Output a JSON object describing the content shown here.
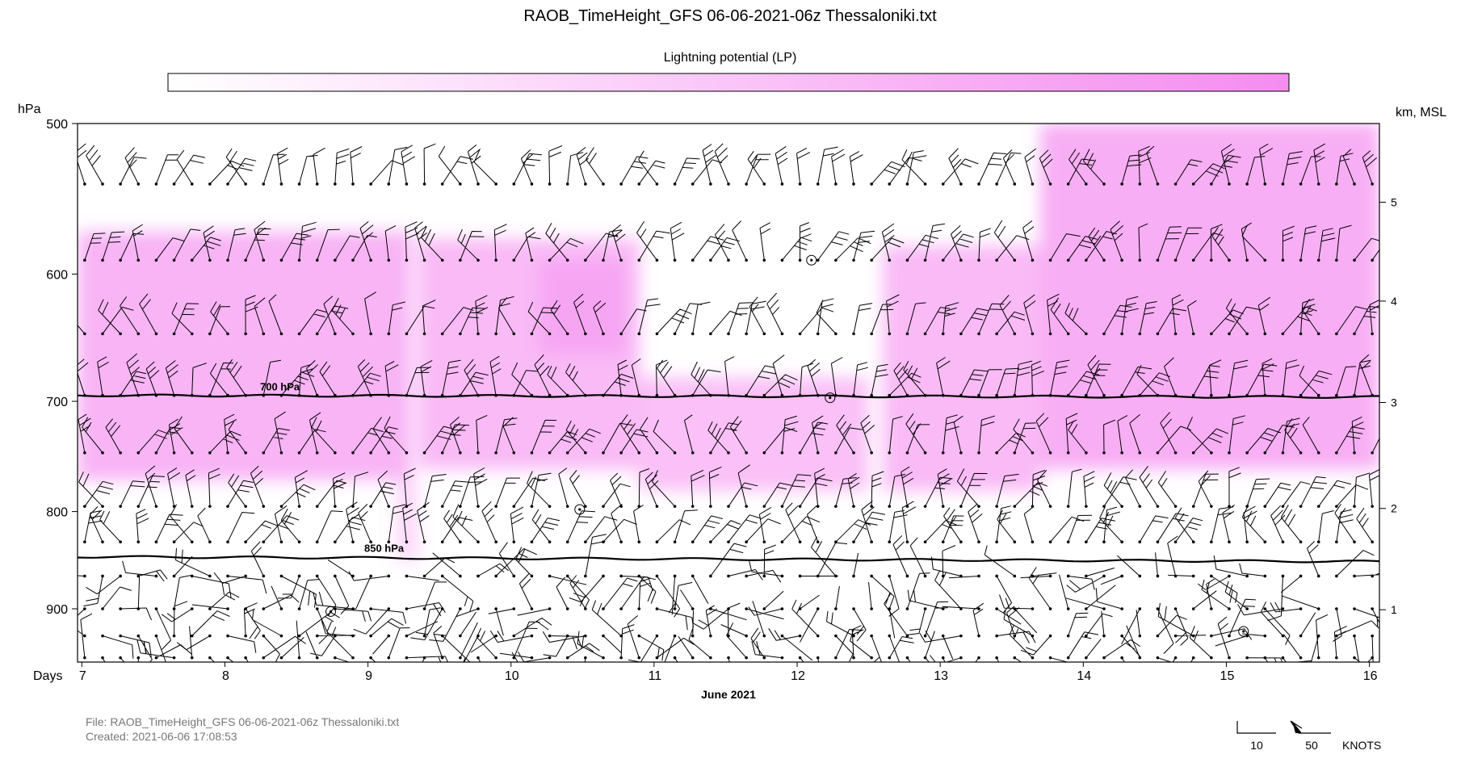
{
  "chart_data": {
    "type": "heatmap",
    "title": "RAOB_TimeHeight_GFS 06-06-2021-06z Thessaloniki.txt",
    "colorbar": {
      "label": "Lightning potential (LP)",
      "color_low": "#ffffff",
      "color_high": "#f58cf0"
    },
    "y_left": {
      "label": "hPa",
      "ticks": [
        500,
        600,
        700,
        800,
        900
      ],
      "range": [
        500,
        960
      ],
      "scale": "log"
    },
    "y_right": {
      "label": "km, MSL",
      "ticks": [
        {
          "label": "5",
          "p": 550
        },
        {
          "label": "4",
          "p": 620
        },
        {
          "label": "3",
          "p": 701
        },
        {
          "label": "2",
          "p": 797
        },
        {
          "label": "1",
          "p": 901
        }
      ]
    },
    "x": {
      "label": "Days",
      "sublabel": "June 2021",
      "ticks": [
        "7",
        "8",
        "9",
        "10",
        "11",
        "12",
        "13",
        "14",
        "15",
        "16"
      ],
      "range": [
        6.97,
        16.07
      ]
    },
    "pressure_lines": [
      {
        "label": "700 hPa",
        "p": 695
      },
      {
        "label": "850 hPa",
        "p": 845
      }
    ],
    "lp_regions": [
      {
        "t": [
          6.97,
          9.3
        ],
        "p": [
          570,
          770
        ],
        "intensity": 0.65
      },
      {
        "t": [
          9.2,
          9.35
        ],
        "p": [
          770,
          850
        ],
        "intensity": 0.35
      },
      {
        "t": [
          9.35,
          10.9
        ],
        "p": [
          575,
          760
        ],
        "intensity": 0.6
      },
      {
        "t": [
          10.9,
          12.5
        ],
        "p": [
          680,
          780
        ],
        "intensity": 0.55
      },
      {
        "t": [
          10.2,
          10.8
        ],
        "p": [
          590,
          660
        ],
        "intensity": 0.45
      },
      {
        "t": [
          12.6,
          13.7
        ],
        "p": [
          580,
          780
        ],
        "intensity": 0.6
      },
      {
        "t": [
          13.7,
          16.07
        ],
        "p": [
          500,
          760
        ],
        "intensity": 0.7
      }
    ],
    "wind_barb_levels_hPa": [
      538,
      590,
      645,
      695,
      745,
      795,
      830,
      865,
      900,
      930,
      955
    ],
    "wind_barb_times_per_day": 8,
    "barb_scale": {
      "values": [
        "10",
        "50"
      ],
      "unit": "KNOTS"
    },
    "grid": false
  },
  "footer": {
    "file": "File: RAOB_TimeHeight_GFS 06-06-2021-06z Thessaloniki.txt",
    "created": "Created:  2021-06-06  17:08:53"
  }
}
